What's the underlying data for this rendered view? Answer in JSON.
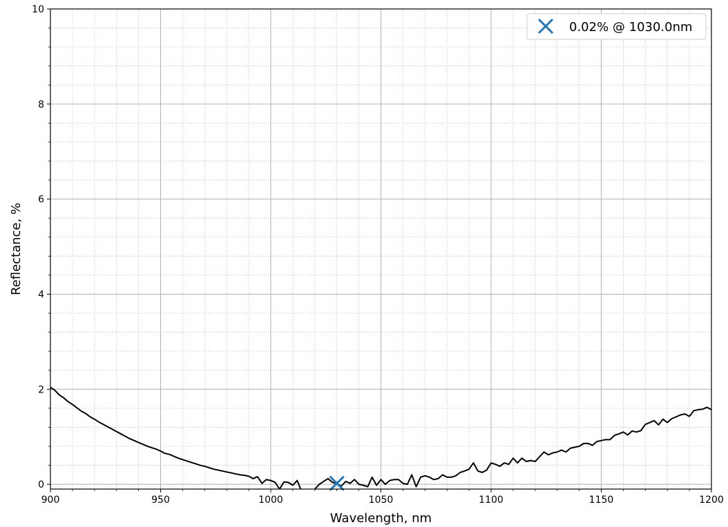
{
  "chart_data": {
    "type": "line",
    "title": "",
    "xlabel": "Wavelength, nm",
    "ylabel": "Reflectance, %",
    "xlim": [
      900,
      1200
    ],
    "ylim": [
      -0.1,
      10
    ],
    "xticks": [
      900,
      950,
      1000,
      1050,
      1100,
      1150,
      1200
    ],
    "yticks": [
      0,
      2,
      4,
      6,
      8,
      10
    ],
    "grid": true,
    "minor_grid": true,
    "legend_position": "upper right",
    "series": [
      {
        "color": "#000000",
        "x": [
          900,
          902,
          904,
          906,
          908,
          910,
          912,
          914,
          916,
          918,
          920,
          922,
          924,
          926,
          928,
          930,
          932,
          934,
          936,
          938,
          940,
          942,
          944,
          946,
          948,
          950,
          952,
          954,
          956,
          958,
          960,
          962,
          964,
          966,
          968,
          970,
          972,
          974,
          976,
          978,
          980,
          982,
          984,
          986,
          988,
          990,
          992,
          994,
          996,
          998,
          1000,
          1002,
          1004,
          1006,
          1008,
          1010,
          1012,
          1014,
          1016,
          1018,
          1020,
          1022,
          1024,
          1026,
          1028,
          1030,
          1032,
          1034,
          1036,
          1038,
          1040,
          1042,
          1044,
          1046,
          1048,
          1050,
          1052,
          1054,
          1056,
          1058,
          1060,
          1062,
          1064,
          1066,
          1068,
          1070,
          1072,
          1074,
          1076,
          1078,
          1080,
          1082,
          1084,
          1086,
          1088,
          1090,
          1092,
          1094,
          1096,
          1098,
          1100,
          1102,
          1104,
          1106,
          1108,
          1110,
          1112,
          1114,
          1116,
          1118,
          1120,
          1122,
          1124,
          1126,
          1128,
          1130,
          1132,
          1134,
          1136,
          1138,
          1140,
          1142,
          1144,
          1146,
          1148,
          1150,
          1152,
          1154,
          1156,
          1158,
          1160,
          1162,
          1164,
          1166,
          1168,
          1170,
          1172,
          1174,
          1176,
          1178,
          1180,
          1182,
          1184,
          1186,
          1188,
          1190,
          1192,
          1194,
          1196,
          1198,
          1200
        ],
        "y": [
          2.04,
          1.98,
          1.88,
          1.82,
          1.74,
          1.68,
          1.61,
          1.54,
          1.49,
          1.42,
          1.37,
          1.31,
          1.26,
          1.21,
          1.16,
          1.11,
          1.06,
          1.01,
          0.96,
          0.92,
          0.88,
          0.84,
          0.8,
          0.77,
          0.74,
          0.7,
          0.65,
          0.63,
          0.59,
          0.55,
          0.52,
          0.49,
          0.46,
          0.43,
          0.4,
          0.38,
          0.35,
          0.32,
          0.3,
          0.28,
          0.26,
          0.24,
          0.22,
          0.2,
          0.19,
          0.17,
          0.12,
          0.16,
          0.02,
          0.1,
          0.08,
          0.04,
          -0.1,
          0.05,
          0.04,
          -0.02,
          0.08,
          -0.15,
          -0.2,
          -0.22,
          -0.1,
          0.0,
          0.06,
          0.12,
          0.04,
          0.02,
          -0.04,
          0.06,
          0.02,
          0.1,
          0.0,
          -0.02,
          -0.05,
          0.15,
          -0.02,
          0.1,
          0.0,
          0.08,
          0.1,
          0.1,
          0.02,
          0.0,
          0.2,
          -0.05,
          0.15,
          0.18,
          0.15,
          0.1,
          0.12,
          0.2,
          0.15,
          0.15,
          0.18,
          0.25,
          0.28,
          0.32,
          0.45,
          0.28,
          0.25,
          0.3,
          0.45,
          0.42,
          0.38,
          0.45,
          0.42,
          0.55,
          0.45,
          0.55,
          0.48,
          0.5,
          0.48,
          0.58,
          0.68,
          0.62,
          0.66,
          0.68,
          0.72,
          0.68,
          0.76,
          0.78,
          0.8,
          0.86,
          0.86,
          0.82,
          0.9,
          0.92,
          0.94,
          0.94,
          1.03,
          1.06,
          1.1,
          1.04,
          1.12,
          1.1,
          1.13,
          1.26,
          1.3,
          1.34,
          1.25,
          1.37,
          1.3,
          1.38,
          1.42,
          1.46,
          1.48,
          1.43,
          1.55,
          1.57,
          1.58,
          1.62,
          1.57
        ]
      }
    ],
    "marker": {
      "x": 1030.0,
      "y": 0.02,
      "symbol": "x",
      "color": "#1f77b4",
      "label": "0.02% @ 1030.0nm"
    }
  }
}
